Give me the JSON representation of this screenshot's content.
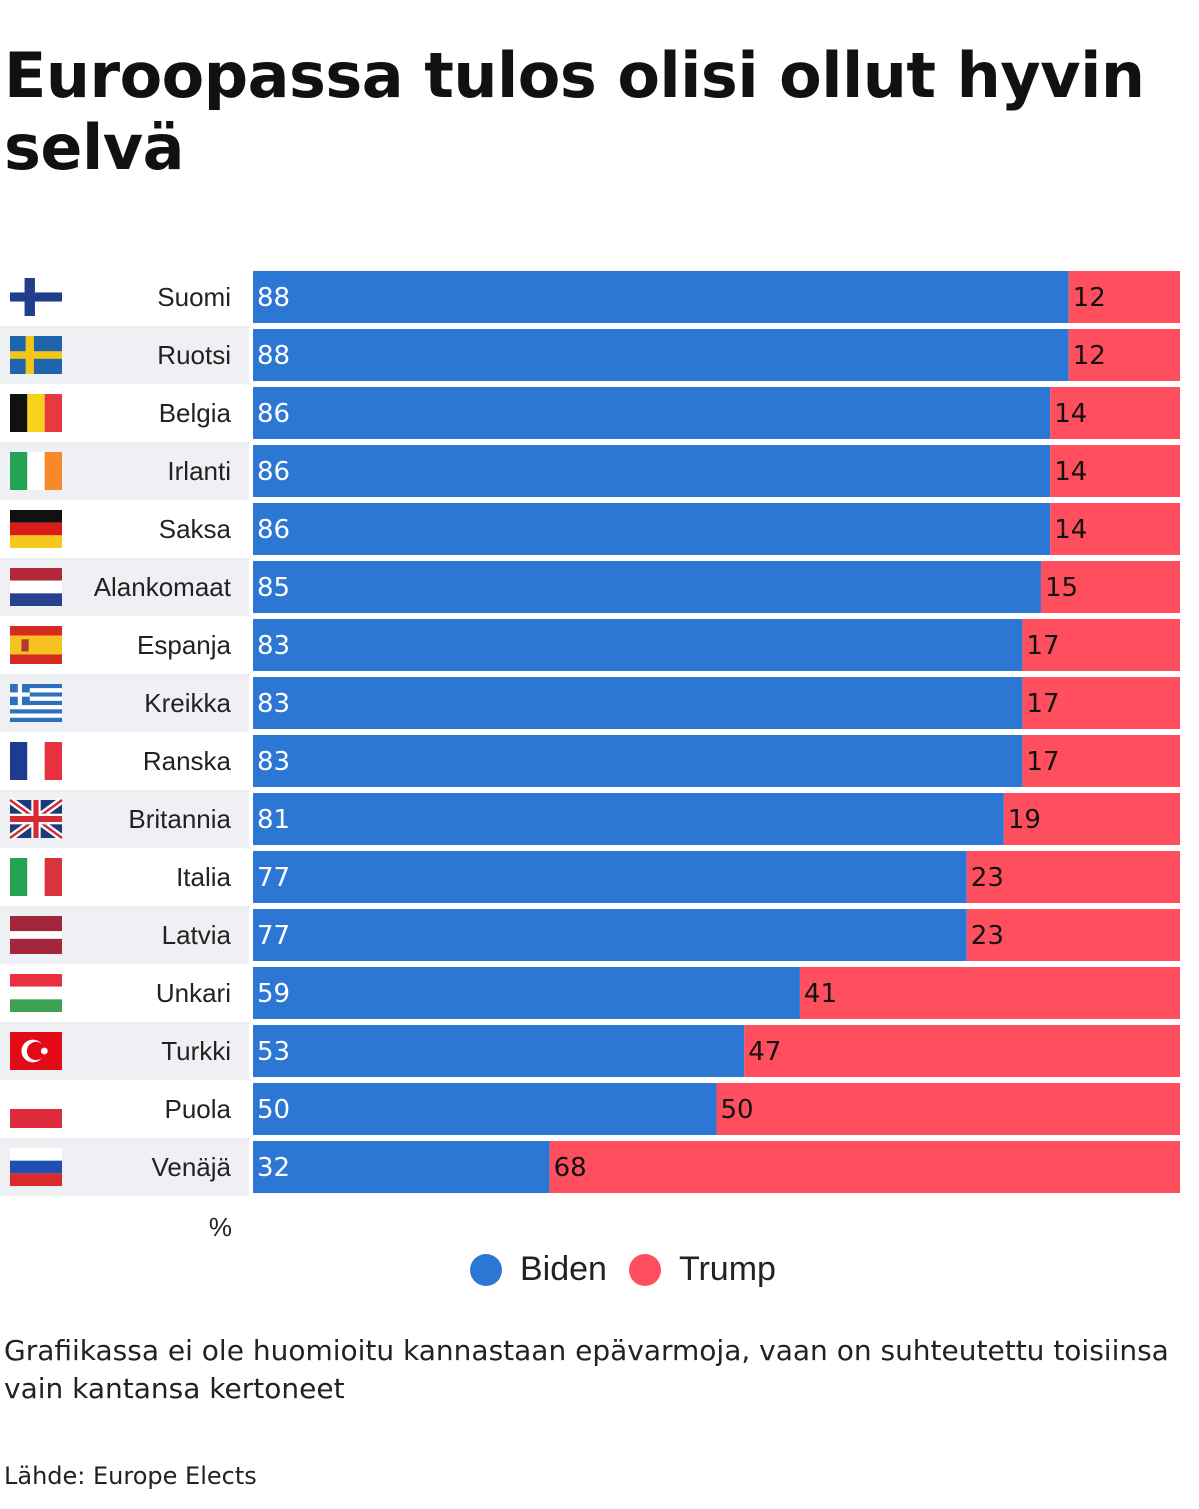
{
  "title": "Euroopassa tulos olisi ollut hyvin selvä",
  "unit_label": "%",
  "note": "Grafiikassa ei ole huomioitu kannastaan epävarmoja, vaan on suhteutettu toisiinsa vain kantansa kertoneet",
  "source": "Lähde: Europe Elects",
  "colors": {
    "biden": "#2d77d4",
    "trump": "#ff4f5e",
    "row_shade": "#eef0f3"
  },
  "legend": [
    {
      "name": "Biden",
      "color": "#2d77d4"
    },
    {
      "name": "Trump",
      "color": "#ff4f5e"
    }
  ],
  "chart_data": {
    "type": "bar",
    "orientation": "horizontal",
    "stacked": true,
    "xlim": [
      0,
      100
    ],
    "grid": false,
    "legend_position": "bottom",
    "categories": [
      "Suomi",
      "Ruotsi",
      "Belgia",
      "Irlanti",
      "Saksa",
      "Alankomaat",
      "Espanja",
      "Kreikka",
      "Ranska",
      "Britannia",
      "Italia",
      "Latvia",
      "Unkari",
      "Turkki",
      "Puola",
      "Venäjä"
    ],
    "flag_icons": [
      "finland-flag-icon",
      "sweden-flag-icon",
      "belgium-flag-icon",
      "ireland-flag-icon",
      "germany-flag-icon",
      "netherlands-flag-icon",
      "spain-flag-icon",
      "greece-flag-icon",
      "france-flag-icon",
      "uk-flag-icon",
      "italy-flag-icon",
      "latvia-flag-icon",
      "hungary-flag-icon",
      "turkey-flag-icon",
      "poland-flag-icon",
      "russia-flag-icon"
    ],
    "series": [
      {
        "name": "Biden",
        "color": "#2d77d4",
        "values": [
          88,
          88,
          86,
          86,
          86,
          85,
          83,
          83,
          83,
          81,
          77,
          77,
          59,
          53,
          50,
          32
        ]
      },
      {
        "name": "Trump",
        "color": "#ff4f5e",
        "values": [
          12,
          12,
          14,
          14,
          14,
          15,
          17,
          17,
          17,
          19,
          23,
          23,
          41,
          47,
          50,
          68
        ]
      }
    ]
  }
}
